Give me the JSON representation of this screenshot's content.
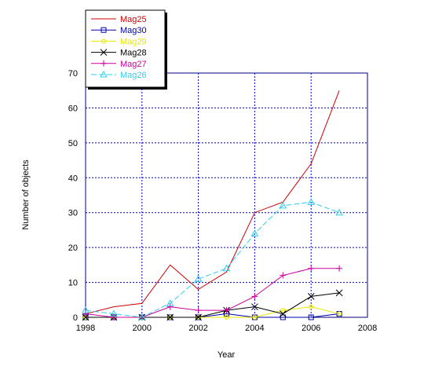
{
  "chart_data": {
    "type": "line",
    "title": "",
    "xlabel": "Year",
    "ylabel": "Number of objects",
    "xlim": [
      1998,
      2008
    ],
    "ylim": [
      0,
      70
    ],
    "xticks": [
      "1998",
      "2000",
      "2002",
      "2004",
      "2006",
      "2008"
    ],
    "yticks": [
      "0",
      "10",
      "20",
      "30",
      "40",
      "50",
      "60",
      "70"
    ],
    "grid": true,
    "legend_position": "top-left",
    "x": [
      1998,
      1999,
      2000,
      2001,
      2002,
      2003,
      2004,
      2005,
      2006,
      2007
    ],
    "series": [
      {
        "name": "Mag25",
        "color": "#cc0000",
        "marker": "none",
        "values": [
          1,
          3,
          4,
          15,
          8,
          13,
          30,
          33,
          44,
          65
        ]
      },
      {
        "name": "Mag30",
        "color": "#0000aa",
        "marker": "square",
        "values": [
          0,
          0,
          0,
          0,
          0,
          1,
          0,
          0,
          0,
          1
        ]
      },
      {
        "name": "Mag29",
        "color": "#e8e800",
        "marker": "circle",
        "values": [
          0,
          0,
          0,
          0,
          0,
          0,
          0,
          2,
          3,
          1
        ]
      },
      {
        "name": "Mag28",
        "color": "#000000",
        "marker": "x",
        "values": [
          0,
          0,
          0,
          0,
          0,
          2,
          3,
          1,
          6,
          7
        ]
      },
      {
        "name": "Mag27",
        "color": "#cc0099",
        "marker": "plus",
        "values": [
          1,
          0,
          0,
          3,
          2,
          2,
          6,
          12,
          14,
          14
        ]
      },
      {
        "name": "Mag26",
        "color": "#33ccee",
        "marker": "triangle",
        "values": [
          2,
          1,
          0,
          4,
          11,
          14,
          24,
          32,
          33,
          30
        ]
      }
    ]
  }
}
